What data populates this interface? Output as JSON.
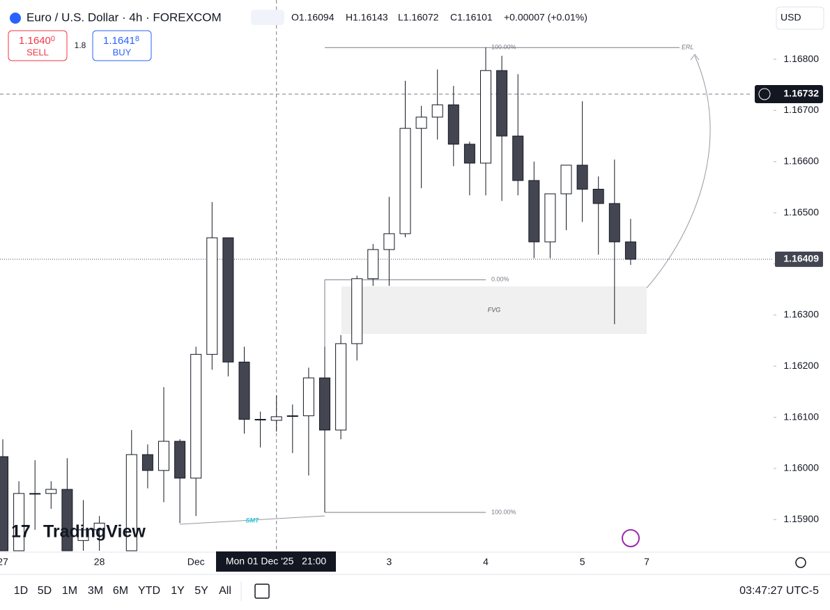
{
  "header": {
    "symbol": "Euro / U.S. Dollar · 4h · FOREXCOM",
    "open": "O1.16094",
    "high": "H1.16143",
    "low": "L1.16072",
    "close": "C1.16101",
    "change": "+0.00007 (+0.01%)",
    "currency": "USD"
  },
  "trade": {
    "sell_price": "1.1640",
    "sell_pip": "0",
    "sell": "SELL",
    "spread": "1.8",
    "buy_price": "1.1641",
    "buy_pip": "8",
    "buy": "BUY"
  },
  "chart_data": {
    "type": "candlestick",
    "categories": [
      "27",
      null,
      null,
      null,
      null,
      null,
      "28",
      null,
      null,
      null,
      null,
      null,
      "Dec",
      null,
      null,
      null,
      null,
      null,
      null,
      null,
      null,
      null,
      null,
      null,
      "3",
      null,
      null,
      null,
      null,
      null,
      "4",
      null,
      null,
      null,
      null,
      null,
      "5",
      null,
      null,
      null,
      "7"
    ],
    "open": [
      1.16023,
      1.15839,
      1.15951,
      1.15951,
      1.15959,
      1.15859,
      1.1588,
      null,
      1.15839,
      1.16027,
      1.15996,
      1.16053,
      1.15981,
      1.16223,
      1.16451,
      1.16208,
      1.16096,
      1.16094,
      1.16102,
      1.16103,
      1.16177,
      1.16075,
      1.16244,
      1.16371,
      1.16428,
      1.16459,
      1.16665,
      1.16687,
      1.16711,
      1.16634,
      1.16597,
      1.16778,
      1.1665,
      1.16563,
      1.16443,
      1.16537,
      1.16593,
      1.16546,
      1.16518,
      1.16443,
      null
    ],
    "high": [
      1.16057,
      1.15975,
      1.16016,
      1.15975,
      1.1602,
      1.15938,
      1.15907,
      null,
      1.16075,
      1.16047,
      1.16159,
      1.16057,
      1.16238,
      1.16521,
      1.16451,
      1.16238,
      1.16111,
      1.16143,
      1.16125,
      1.16197,
      1.16238,
      1.16261,
      1.16377,
      1.16439,
      1.16531,
      1.16758,
      1.16709,
      1.1678,
      1.16748,
      1.16639,
      1.16823,
      1.16807,
      1.16771,
      1.166,
      1.16537,
      1.16593,
      1.16718,
      1.16571,
      1.16604,
      1.16488,
      null
    ],
    "low": [
      1.15839,
      1.15839,
      1.1588,
      1.15921,
      1.15839,
      1.15839,
      1.15839,
      null,
      1.15839,
      1.15961,
      1.15934,
      1.15893,
      1.15907,
      1.16193,
      1.1618,
      1.16068,
      1.16041,
      1.16072,
      1.1603,
      1.15986,
      1.15914,
      1.16057,
      1.16211,
      1.16357,
      1.16357,
      1.16452,
      1.16548,
      1.16643,
      1.16591,
      1.16534,
      1.16534,
      1.16523,
      1.16534,
      1.16411,
      1.16411,
      1.16466,
      1.16482,
      1.16418,
      1.16282,
      1.16398,
      null
    ],
    "close": [
      1.15839,
      1.15951,
      1.15951,
      1.15959,
      1.15839,
      1.1588,
      1.15893,
      null,
      1.16027,
      1.15996,
      1.16053,
      1.15981,
      1.16223,
      1.16451,
      1.16208,
      1.16096,
      1.16096,
      1.16101,
      1.16103,
      1.16177,
      1.16075,
      1.16244,
      1.16371,
      1.16428,
      1.16459,
      1.16665,
      1.16687,
      1.16711,
      1.16634,
      1.16597,
      1.16778,
      1.1665,
      1.16563,
      1.16443,
      1.16537,
      1.16593,
      1.16546,
      1.16518,
      1.16443,
      1.16409,
      null
    ],
    "ylim": [
      1.15839,
      1.16916
    ],
    "yticks": [
      {
        "value": 1.159,
        "label": "1.15900"
      },
      {
        "value": 1.16,
        "label": "1.16000"
      },
      {
        "value": 1.161,
        "label": "1.16100"
      },
      {
        "value": 1.162,
        "label": "1.16200"
      },
      {
        "value": 1.163,
        "label": "1.16300"
      },
      {
        "value": 1.164,
        "label": "1.16400"
      },
      {
        "value": 1.165,
        "label": "1.16500"
      },
      {
        "value": 1.166,
        "label": "1.16600"
      },
      {
        "value": 1.167,
        "label": "1.16700"
      },
      {
        "value": 1.168,
        "label": "1.16800"
      }
    ],
    "up_color": "#ffffff",
    "down_color": "#434651",
    "crosshair_label": "Mon 01 Dec '25   21:00",
    "crosshair_price": 1.16732,
    "last_price": 1.16409,
    "fib": [
      {
        "value": 1.16823,
        "label": "100.00%"
      },
      {
        "value": 1.16369,
        "label": "0.00%"
      },
      {
        "value": 1.15914,
        "label": "100.00%"
      }
    ],
    "fvg": {
      "label": "FVG",
      "top": 1.16356,
      "bottom": 1.16263
    },
    "erl_label": "ERL",
    "smt_label": "SMT"
  },
  "logo": "TradingView",
  "toolbar": {
    "ranges": [
      "1D",
      "5D",
      "1M",
      "3M",
      "6M",
      "YTD",
      "1Y",
      "5Y",
      "All"
    ],
    "clock": "03:47:27 UTC-5"
  }
}
